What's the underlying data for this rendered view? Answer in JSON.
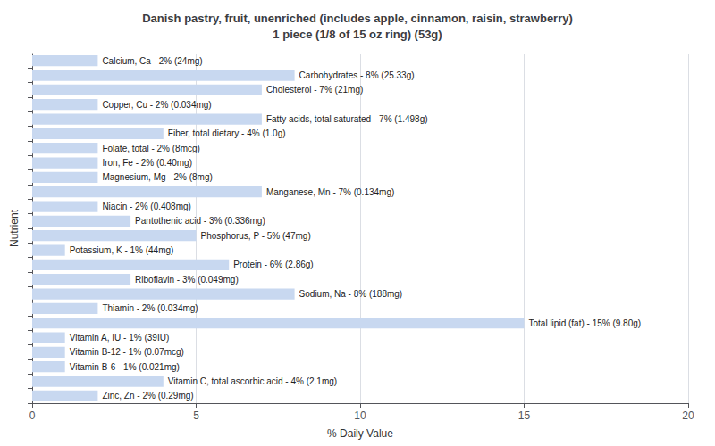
{
  "chart_data": {
    "type": "bar",
    "orientation": "horizontal",
    "title": "Danish pastry, fruit, unenriched (includes apple, cinnamon, raisin, strawberry)\n1 piece (1/8 of 15 oz ring) (53g)",
    "xlabel": "% Daily Value",
    "ylabel": "Nutrient",
    "categories": [
      "Calcium, Ca - 2% (24mg)",
      "Carbohydrates - 8% (25.33g)",
      "Cholesterol - 7% (21mg)",
      "Copper, Cu - 2% (0.034mg)",
      "Fatty acids, total saturated - 7% (1.498g)",
      "Fiber, total dietary - 4% (1.0g)",
      "Folate, total - 2% (8mcg)",
      "Iron, Fe - 2% (0.40mg)",
      "Magnesium, Mg - 2% (8mg)",
      "Manganese, Mn - 7% (0.134mg)",
      "Niacin - 2% (0.408mg)",
      "Pantothenic acid - 3% (0.336mg)",
      "Phosphorus, P - 5% (47mg)",
      "Potassium, K - 1% (44mg)",
      "Protein - 6% (2.86g)",
      "Riboflavin - 3% (0.049mg)",
      "Sodium, Na - 8% (188mg)",
      "Thiamin - 2% (0.034mg)",
      "Total lipid (fat) - 15% (9.80g)",
      "Vitamin A, IU - 1% (39IU)",
      "Vitamin B-12 - 1% (0.07mcg)",
      "Vitamin B-6 - 1% (0.021mg)",
      "Vitamin C, total ascorbic acid - 4% (2.1mg)",
      "Zinc, Zn - 2% (0.29mg)"
    ],
    "values": [
      2,
      8,
      7,
      2,
      7,
      4,
      2,
      2,
      2,
      7,
      2,
      3,
      5,
      1,
      6,
      3,
      8,
      2,
      15,
      1,
      1,
      1,
      4,
      2
    ],
    "color": "#c8d8f0",
    "xlim": [
      0,
      20
    ],
    "xticks": [
      0,
      5,
      10,
      15,
      20
    ],
    "grid": true,
    "tick_labels": "x"
  }
}
